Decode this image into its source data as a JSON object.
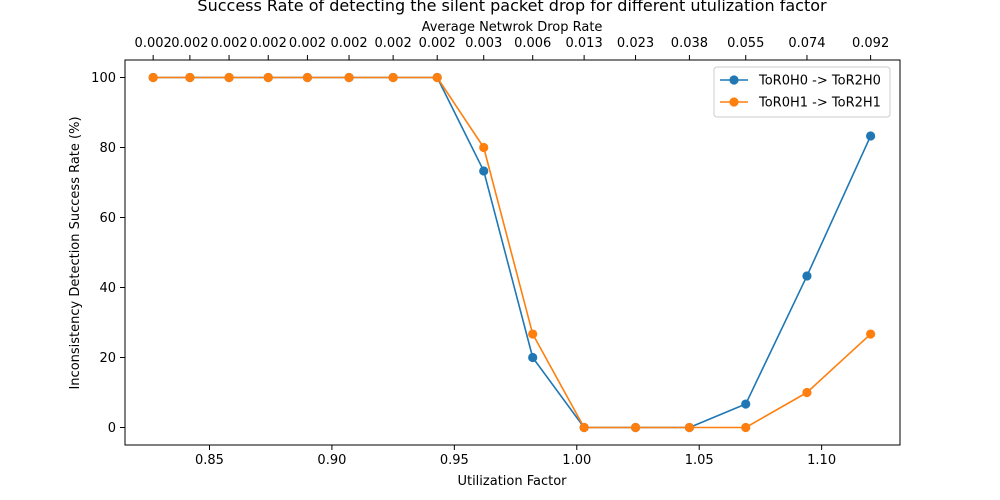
{
  "chart_data": {
    "type": "line",
    "title": "Success Rate of detecting the silent packet drop for different utulization factor",
    "xlabel": "Utilization Factor",
    "ylabel": "Inconsistency Detection Success Rate (%)",
    "top_xlabel": "Average Netwrok Drop Rate",
    "x": [
      0.827,
      0.842,
      0.858,
      0.874,
      0.89,
      0.907,
      0.925,
      0.943,
      0.962,
      0.982,
      1.003,
      1.024,
      1.046,
      1.069,
      1.094,
      1.12
    ],
    "top_tick_labels": [
      "0.002",
      "0.002",
      "0.002",
      "0.002",
      "0.002",
      "0.002",
      "0.002",
      "0.002",
      "0.003",
      "0.006",
      "0.013",
      "0.023",
      "0.038",
      "0.055",
      "0.074",
      "0.092"
    ],
    "series": [
      {
        "name": "ToR0H0 -> ToR2H0",
        "color": "#1f77b4",
        "values": [
          100,
          100,
          100,
          100,
          100,
          100,
          100,
          100,
          73.3,
          20,
          0,
          0,
          0,
          6.7,
          43.3,
          83.3
        ]
      },
      {
        "name": "ToR0H1 -> ToR2H1",
        "color": "#ff7f0e",
        "values": [
          100,
          100,
          100,
          100,
          100,
          100,
          100,
          100,
          80,
          26.7,
          0,
          0,
          0,
          0,
          10,
          26.7
        ]
      }
    ],
    "xlim": [
      0.8155,
      1.132
    ],
    "ylim": [
      -5,
      105
    ],
    "x_ticks": [
      "0.85",
      "0.90",
      "0.95",
      "1.00",
      "1.05",
      "1.10"
    ],
    "y_ticks": [
      "0",
      "20",
      "40",
      "60",
      "80",
      "100"
    ],
    "grid": false,
    "legend_position": "top-right"
  }
}
